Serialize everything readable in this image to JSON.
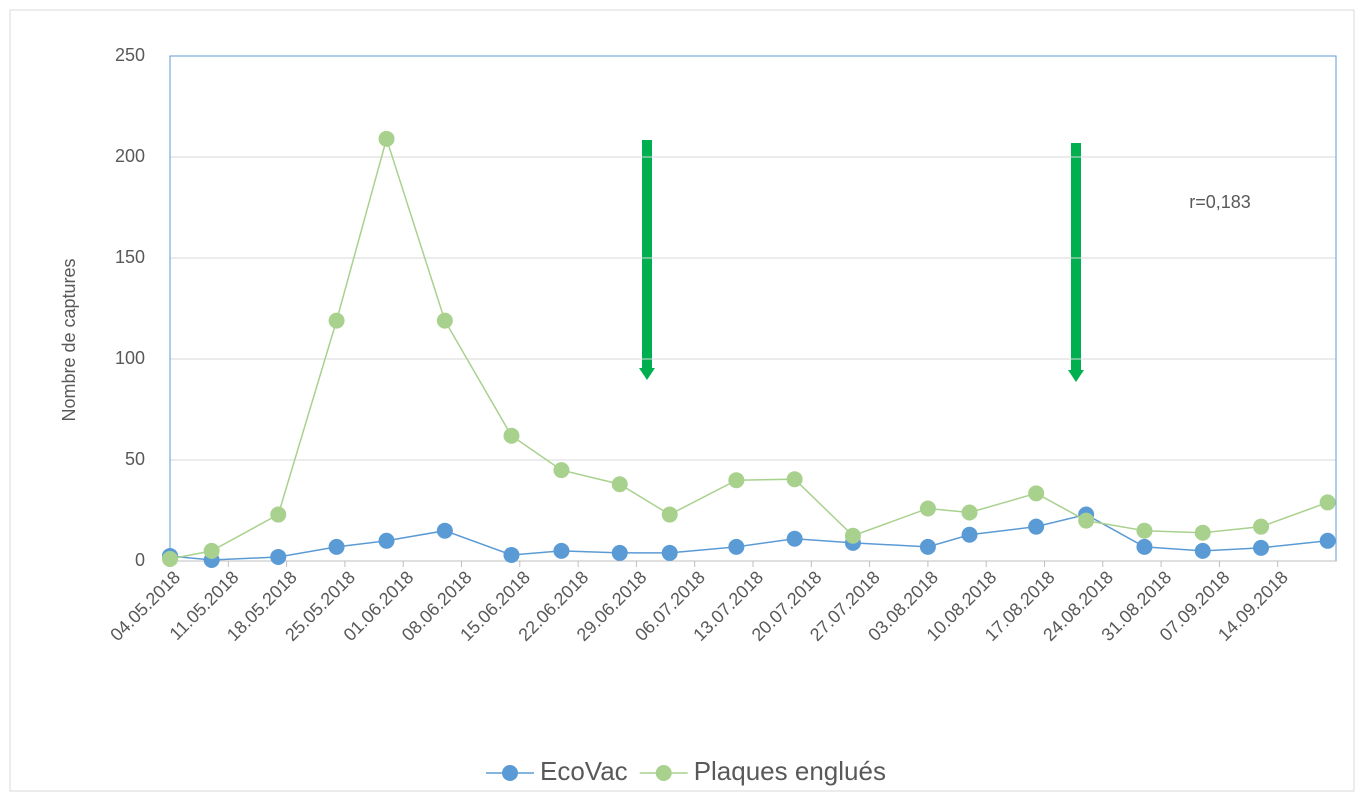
{
  "chart_data": {
    "type": "line",
    "y_label": "Nombre de captures",
    "annotation": "r=0,183",
    "x": [
      "2018-05-04",
      "2018-05-09",
      "2018-05-17",
      "2018-05-24",
      "2018-05-30",
      "2018-06-06",
      "2018-06-14",
      "2018-06-20",
      "2018-06-27",
      "2018-07-03",
      "2018-07-11",
      "2018-07-18",
      "2018-07-25",
      "2018-08-03",
      "2018-08-08",
      "2018-08-16",
      "2018-08-22",
      "2018-08-29",
      "2018-09-05",
      "2018-09-12",
      "2018-09-20"
    ],
    "series": [
      {
        "name": "EcoVac",
        "color": "#5b9bd5",
        "values": [
          2.5,
          0.5,
          2,
          7,
          10,
          15,
          3,
          5,
          4,
          4,
          7,
          11,
          9,
          7,
          13,
          17,
          23,
          7,
          5,
          6.5,
          10
        ]
      },
      {
        "name": "Plaques englués",
        "color": "#a9d18e",
        "values": [
          1,
          5,
          23,
          119,
          209,
          119,
          62,
          45,
          38,
          23,
          40,
          40.5,
          12.5,
          26,
          24,
          33.5,
          20,
          15,
          14,
          17,
          29
        ]
      }
    ],
    "xlim": [
      "2018-05-04",
      "2018-09-21"
    ],
    "xticks": [
      {
        "value": "2018-05-04",
        "label": "04.05.2018"
      },
      {
        "value": "2018-05-11",
        "label": "11.05.2018"
      },
      {
        "value": "2018-05-18",
        "label": "18.05.2018"
      },
      {
        "value": "2018-05-25",
        "label": "25.05.2018"
      },
      {
        "value": "2018-06-01",
        "label": "01.06.2018"
      },
      {
        "value": "2018-06-08",
        "label": "08.06.2018"
      },
      {
        "value": "2018-06-15",
        "label": "15.06.2018"
      },
      {
        "value": "2018-06-22",
        "label": "22.06.2018"
      },
      {
        "value": "2018-06-29",
        "label": "29.06.2018"
      },
      {
        "value": "2018-07-06",
        "label": "06.07.2018"
      },
      {
        "value": "2018-07-13",
        "label": "13.07.2018"
      },
      {
        "value": "2018-07-20",
        "label": "20.07.2018"
      },
      {
        "value": "2018-07-27",
        "label": "27.07.2018"
      },
      {
        "value": "2018-08-03",
        "label": "03.08.2018"
      },
      {
        "value": "2018-08-10",
        "label": "10.08.2018"
      },
      {
        "value": "2018-08-17",
        "label": "17.08.2018"
      },
      {
        "value": "2018-08-24",
        "label": "24.08.2018"
      },
      {
        "value": "2018-08-31",
        "label": "31.08.2018"
      },
      {
        "value": "2018-09-07",
        "label": "07.09.2018"
      },
      {
        "value": "2018-09-14",
        "label": "14.09.2018"
      }
    ],
    "ylim": [
      0,
      250
    ],
    "yticks": [
      0,
      50,
      100,
      150,
      200,
      250
    ],
    "grid": true
  }
}
